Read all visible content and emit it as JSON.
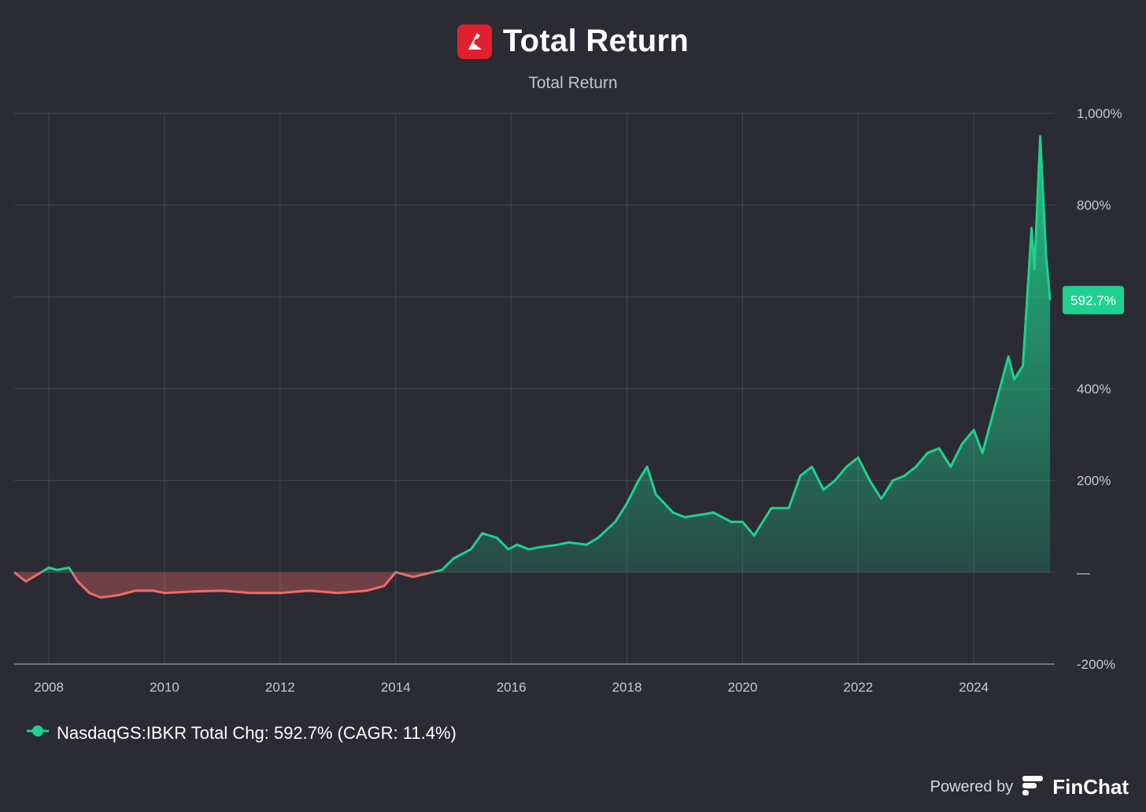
{
  "header": {
    "title": "Total Return",
    "subtitle": "Total Return"
  },
  "legend": {
    "label": "NasdaqGS:IBKR Total Chg: 592.7% (CAGR: 11.4%)"
  },
  "footer": {
    "powered_by": "Powered by",
    "brand": "FinChat"
  },
  "colors": {
    "positive": "#1ed18e",
    "negative": "#f06a6a",
    "logo": "#e0202e",
    "badge": "#1ed18e"
  },
  "chart_data": {
    "type": "area",
    "title": "Total Return",
    "subtitle": "Total Return",
    "ylim": [
      -200,
      1000
    ],
    "xlim": [
      2007.4,
      2025.4
    ],
    "y_ticks": [
      1000,
      800,
      600,
      400,
      200,
      0,
      -200
    ],
    "y_tick_labels": [
      "1,000%",
      "800%",
      "",
      "400%",
      "200%",
      "—",
      "-200%"
    ],
    "x_ticks": [
      2008,
      2010,
      2012,
      2014,
      2016,
      2018,
      2020,
      2022,
      2024
    ],
    "x_tick_labels": [
      "2008",
      "2010",
      "2012",
      "2014",
      "2016",
      "2018",
      "2020",
      "2022",
      "2024"
    ],
    "last_value_label": "592.7%",
    "grid": true,
    "legend_position": "bottom-left",
    "series": [
      {
        "name": "NasdaqGS:IBKR Total Chg",
        "x": [
          2007.4,
          2007.6,
          2007.8,
          2008.0,
          2008.15,
          2008.35,
          2008.5,
          2008.7,
          2008.9,
          2009.2,
          2009.5,
          2009.8,
          2010.0,
          2010.5,
          2011.0,
          2011.5,
          2012.0,
          2012.5,
          2013.0,
          2013.5,
          2013.8,
          2014.0,
          2014.3,
          2014.8,
          2015.0,
          2015.3,
          2015.5,
          2015.75,
          2015.95,
          2016.1,
          2016.3,
          2016.5,
          2016.8,
          2017.0,
          2017.3,
          2017.5,
          2017.8,
          2018.0,
          2018.2,
          2018.35,
          2018.5,
          2018.8,
          2019.0,
          2019.5,
          2019.8,
          2020.0,
          2020.2,
          2020.3,
          2020.5,
          2020.8,
          2021.0,
          2021.2,
          2021.4,
          2021.6,
          2021.8,
          2022.0,
          2022.2,
          2022.4,
          2022.6,
          2022.8,
          2023.0,
          2023.2,
          2023.4,
          2023.6,
          2023.8,
          2024.0,
          2024.15,
          2024.3,
          2024.45,
          2024.6,
          2024.7,
          2024.85,
          2025.0,
          2025.05,
          2025.15,
          2025.25,
          2025.32
        ],
        "y": [
          0,
          -20,
          -5,
          10,
          5,
          10,
          -20,
          -45,
          -55,
          -50,
          -40,
          -40,
          -45,
          -42,
          -40,
          -45,
          -45,
          -40,
          -45,
          -40,
          -30,
          0,
          -10,
          5,
          30,
          50,
          85,
          75,
          50,
          60,
          50,
          55,
          60,
          65,
          60,
          75,
          110,
          150,
          200,
          230,
          170,
          130,
          120,
          130,
          110,
          110,
          80,
          100,
          140,
          140,
          210,
          230,
          180,
          200,
          230,
          250,
          200,
          160,
          200,
          210,
          230,
          260,
          270,
          230,
          280,
          310,
          260,
          330,
          400,
          470,
          420,
          450,
          750,
          660,
          950,
          690,
          593
        ]
      }
    ]
  }
}
